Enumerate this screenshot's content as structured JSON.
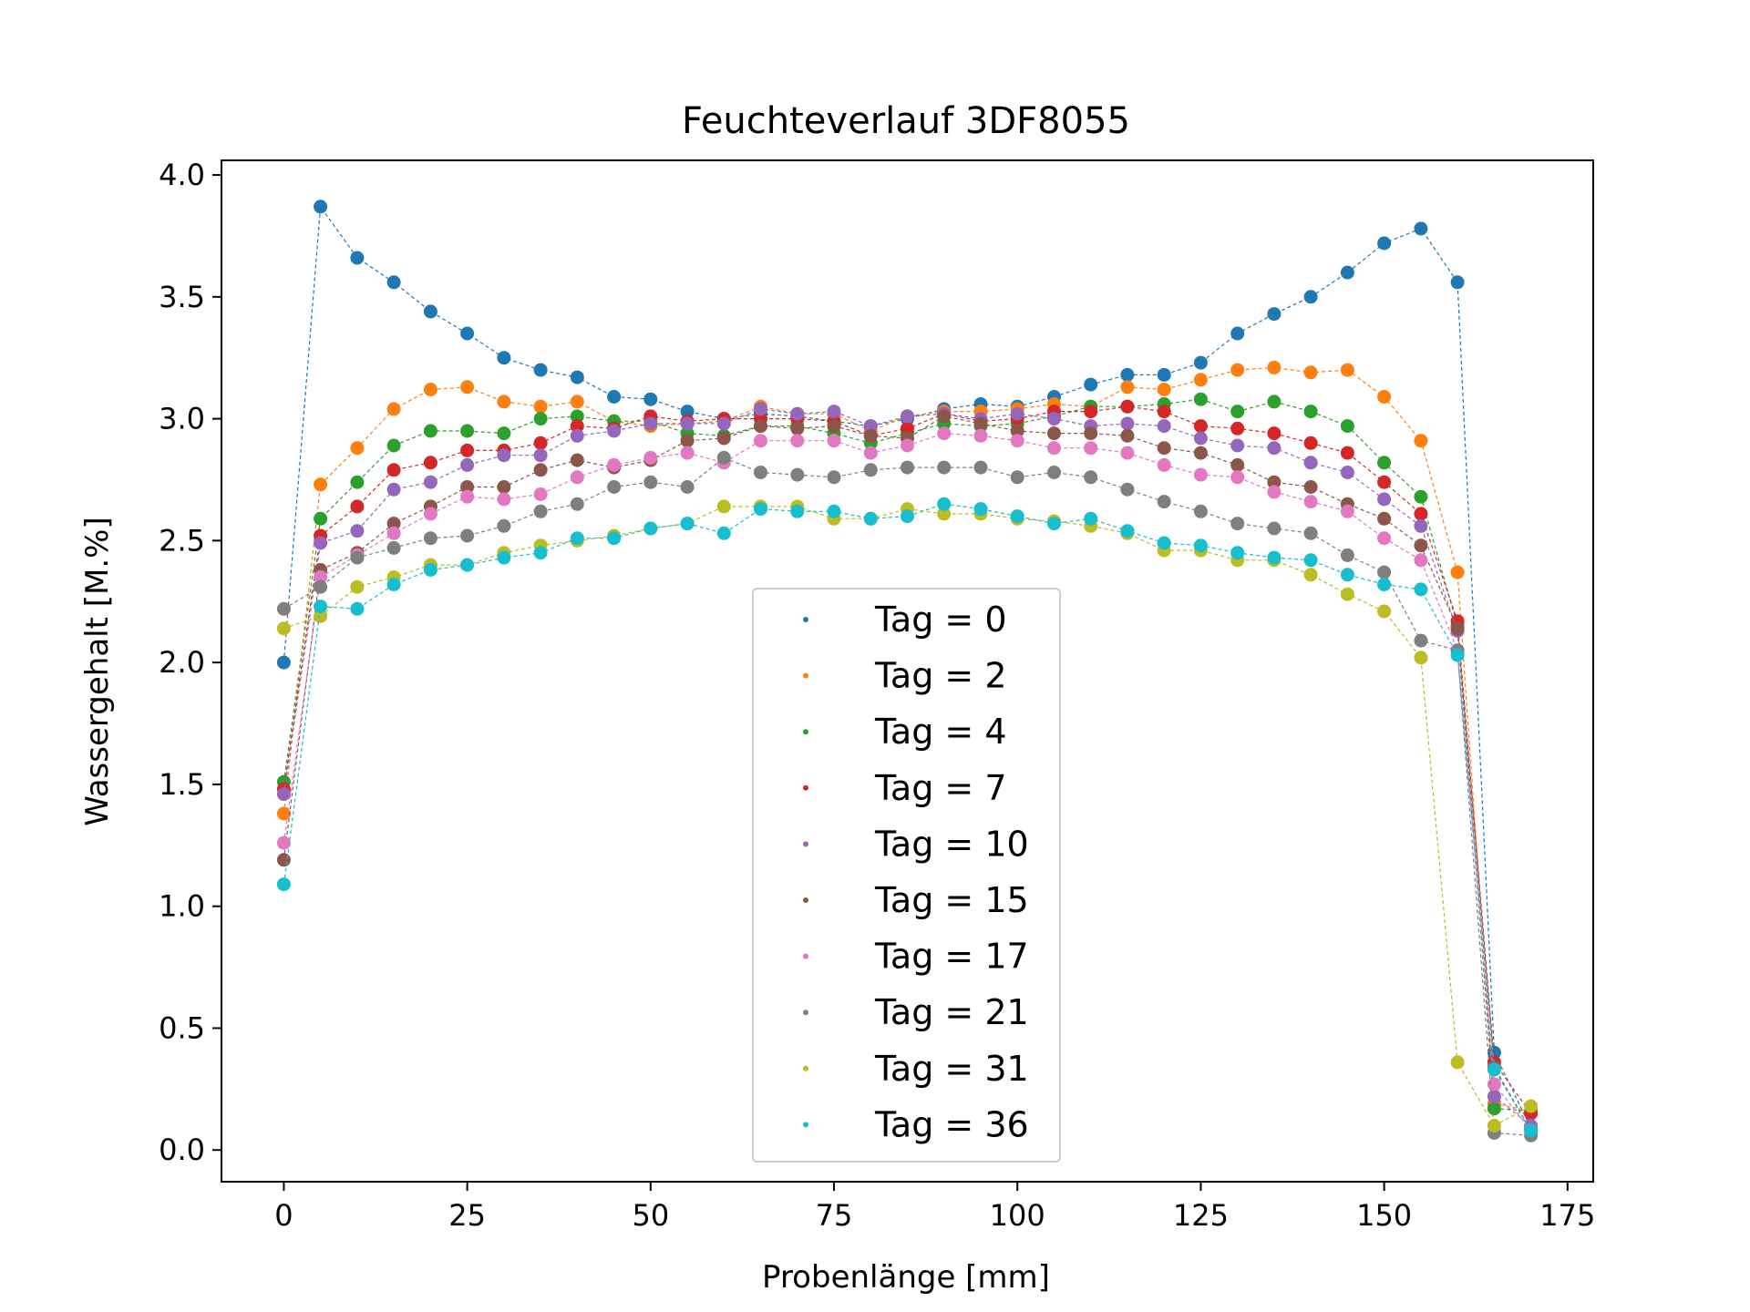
{
  "chart_data": {
    "type": "scatter",
    "title": "Feuchteverlauf 3DF8055",
    "xlabel": "Probenlänge [mm]",
    "ylabel": "Wassergehalt [M.%]",
    "xlim": [
      -8.5,
      178.5
    ],
    "ylim": [
      -0.13,
      4.06
    ],
    "xticks": [
      0,
      25,
      50,
      75,
      100,
      125,
      150,
      175
    ],
    "yticks": [
      0.0,
      0.5,
      1.0,
      1.5,
      2.0,
      2.5,
      3.0,
      3.5,
      4.0
    ],
    "xtick_labels": [
      "0",
      "25",
      "50",
      "75",
      "100",
      "125",
      "150",
      "175"
    ],
    "ytick_labels": [
      "0.0",
      "0.5",
      "1.0",
      "1.5",
      "2.0",
      "2.5",
      "3.0",
      "3.5",
      "4.0"
    ],
    "grid": false,
    "legend_position": "bottom-center",
    "x": [
      0,
      5,
      10,
      15,
      20,
      25,
      30,
      35,
      40,
      45,
      50,
      55,
      60,
      65,
      70,
      75,
      80,
      85,
      90,
      95,
      100,
      105,
      110,
      115,
      120,
      125,
      130,
      135,
      140,
      145,
      150,
      155,
      160,
      165,
      170
    ],
    "series": [
      {
        "name": "Tag = 0",
        "color": "#1f77b4",
        "values": [
          2.0,
          3.87,
          3.66,
          3.56,
          3.44,
          3.35,
          3.25,
          3.2,
          3.17,
          3.09,
          3.08,
          3.03,
          3.0,
          3.02,
          3.01,
          2.99,
          2.97,
          3.0,
          3.04,
          3.06,
          3.05,
          3.09,
          3.14,
          3.18,
          3.18,
          3.23,
          3.35,
          3.43,
          3.5,
          3.6,
          3.72,
          3.78,
          3.56,
          0.4,
          0.09
        ]
      },
      {
        "name": "Tag = 2",
        "color": "#ff7f0e",
        "values": [
          1.38,
          2.73,
          2.88,
          3.04,
          3.12,
          3.13,
          3.07,
          3.05,
          3.07,
          2.99,
          2.97,
          2.98,
          2.99,
          3.05,
          3.02,
          3.02,
          2.95,
          3.01,
          3.03,
          3.03,
          3.04,
          3.06,
          3.05,
          3.13,
          3.12,
          3.16,
          3.2,
          3.21,
          3.19,
          3.2,
          3.09,
          2.91,
          2.37,
          0.19,
          0.16
        ]
      },
      {
        "name": "Tag = 4",
        "color": "#2ca02c",
        "values": [
          1.51,
          2.59,
          2.74,
          2.89,
          2.95,
          2.95,
          2.94,
          3.0,
          3.01,
          2.99,
          2.99,
          2.94,
          2.93,
          2.97,
          2.97,
          2.94,
          2.9,
          2.94,
          2.98,
          2.97,
          2.98,
          3.01,
          3.05,
          3.05,
          3.06,
          3.08,
          3.03,
          3.07,
          3.03,
          2.97,
          2.82,
          2.68,
          2.15,
          0.17,
          0.16
        ]
      },
      {
        "name": "Tag = 7",
        "color": "#d62728",
        "values": [
          1.48,
          2.52,
          2.64,
          2.79,
          2.82,
          2.87,
          2.87,
          2.9,
          2.97,
          2.96,
          3.01,
          2.99,
          3.0,
          3.0,
          3.0,
          2.99,
          2.93,
          2.96,
          3.02,
          2.99,
          3.0,
          3.03,
          3.03,
          3.05,
          3.03,
          2.97,
          2.96,
          2.94,
          2.9,
          2.86,
          2.74,
          2.61,
          2.17,
          0.36,
          0.15
        ]
      },
      {
        "name": "Tag = 10",
        "color": "#9467bd",
        "values": [
          1.46,
          2.49,
          2.54,
          2.71,
          2.74,
          2.81,
          2.85,
          2.85,
          2.93,
          2.95,
          2.98,
          2.98,
          2.98,
          3.04,
          3.02,
          3.03,
          2.97,
          3.01,
          3.02,
          3.0,
          3.02,
          3.0,
          2.97,
          2.98,
          2.97,
          2.92,
          2.89,
          2.88,
          2.82,
          2.78,
          2.67,
          2.56,
          2.13,
          0.22,
          0.1
        ]
      },
      {
        "name": "Tag = 15",
        "color": "#8c564b",
        "values": [
          1.19,
          2.38,
          2.45,
          2.57,
          2.64,
          2.72,
          2.72,
          2.79,
          2.83,
          2.8,
          2.83,
          2.91,
          2.92,
          2.97,
          2.96,
          2.97,
          2.93,
          2.92,
          3.01,
          2.98,
          2.95,
          2.94,
          2.94,
          2.93,
          2.88,
          2.86,
          2.81,
          2.74,
          2.72,
          2.65,
          2.59,
          2.48,
          2.14,
          0.34,
          0.08
        ]
      },
      {
        "name": "Tag = 17",
        "color": "#e377c2",
        "values": [
          1.26,
          2.35,
          2.44,
          2.53,
          2.61,
          2.68,
          2.67,
          2.69,
          2.76,
          2.81,
          2.84,
          2.86,
          2.82,
          2.91,
          2.91,
          2.91,
          2.86,
          2.89,
          2.94,
          2.93,
          2.91,
          2.88,
          2.88,
          2.86,
          2.81,
          2.77,
          2.76,
          2.7,
          2.66,
          2.62,
          2.51,
          2.42,
          2.05,
          0.27,
          0.08
        ]
      },
      {
        "name": "Tag = 21",
        "color": "#7f7f7f",
        "values": [
          2.22,
          2.31,
          2.43,
          2.47,
          2.51,
          2.52,
          2.56,
          2.62,
          2.65,
          2.72,
          2.74,
          2.72,
          2.84,
          2.78,
          2.77,
          2.76,
          2.79,
          2.8,
          2.8,
          2.8,
          2.76,
          2.78,
          2.76,
          2.71,
          2.66,
          2.62,
          2.57,
          2.55,
          2.53,
          2.44,
          2.37,
          2.09,
          2.05,
          0.07,
          0.06
        ]
      },
      {
        "name": "Tag = 31",
        "color": "#bcbd22",
        "values": [
          2.14,
          2.19,
          2.31,
          2.35,
          2.4,
          2.4,
          2.45,
          2.48,
          2.5,
          2.52,
          2.55,
          2.57,
          2.64,
          2.64,
          2.64,
          2.59,
          2.59,
          2.63,
          2.61,
          2.61,
          2.59,
          2.58,
          2.56,
          2.53,
          2.46,
          2.46,
          2.42,
          2.42,
          2.36,
          2.28,
          2.21,
          2.02,
          0.36,
          0.1,
          0.18
        ]
      },
      {
        "name": "Tag = 36",
        "color": "#17becf",
        "values": [
          1.09,
          2.23,
          2.22,
          2.32,
          2.38,
          2.4,
          2.43,
          2.45,
          2.51,
          2.51,
          2.55,
          2.57,
          2.53,
          2.63,
          2.62,
          2.62,
          2.59,
          2.6,
          2.65,
          2.63,
          2.6,
          2.57,
          2.59,
          2.54,
          2.49,
          2.48,
          2.45,
          2.43,
          2.42,
          2.36,
          2.32,
          2.3,
          2.03,
          0.33,
          0.08
        ]
      }
    ]
  }
}
